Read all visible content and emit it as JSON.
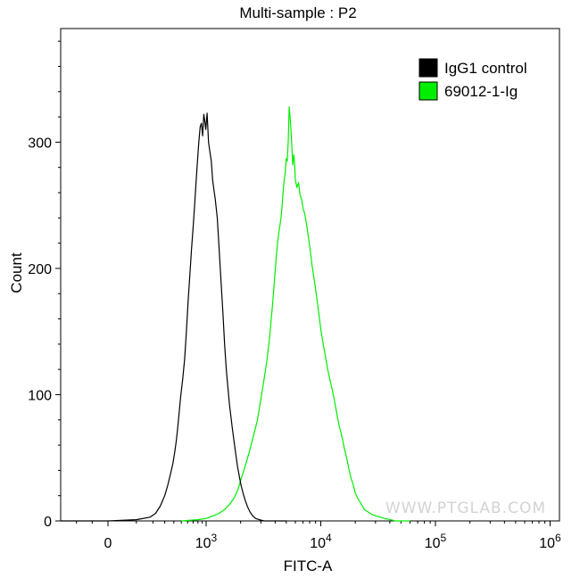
{
  "chart_data": {
    "type": "histogram",
    "title": "Multi-sample : P2",
    "xlabel": "FITC-A",
    "ylabel": "Count",
    "x_scale": "biexponential",
    "xlim": [
      -300,
      1000000
    ],
    "ylim": [
      0,
      390
    ],
    "x_ticks": [
      {
        "value": 0,
        "label": "0"
      },
      {
        "value": 1000,
        "label": "10",
        "sup": "3"
      },
      {
        "value": 10000,
        "label": "10",
        "sup": "4"
      },
      {
        "value": 100000,
        "label": "10",
        "sup": "5"
      },
      {
        "value": 1000000,
        "label": "10",
        "sup": "6"
      }
    ],
    "y_ticks": [
      0,
      100,
      200,
      300
    ],
    "legend_position": "top-right",
    "series": [
      {
        "name": "IgG1 control",
        "color": "#000000",
        "points": [
          [
            -300,
            0
          ],
          [
            -150,
            0
          ],
          [
            0,
            0
          ],
          [
            100,
            1
          ],
          [
            180,
            3
          ],
          [
            220,
            6
          ],
          [
            260,
            12
          ],
          [
            300,
            20
          ],
          [
            330,
            28
          ],
          [
            360,
            37
          ],
          [
            390,
            46
          ],
          [
            410,
            54
          ],
          [
            430,
            63
          ],
          [
            450,
            74
          ],
          [
            470,
            86
          ],
          [
            490,
            98
          ],
          [
            520,
            112
          ],
          [
            550,
            128
          ],
          [
            580,
            150
          ],
          [
            610,
            175
          ],
          [
            640,
            195
          ],
          [
            670,
            215
          ],
          [
            700,
            232
          ],
          [
            730,
            250
          ],
          [
            760,
            268
          ],
          [
            790,
            285
          ],
          [
            820,
            300
          ],
          [
            850,
            312
          ],
          [
            880,
            315
          ],
          [
            910,
            305
          ],
          [
            940,
            322
          ],
          [
            960,
            318
          ],
          [
            990,
            310
          ],
          [
            1020,
            323
          ],
          [
            1050,
            300
          ],
          [
            1080,
            292
          ],
          [
            1110,
            285
          ],
          [
            1140,
            270
          ],
          [
            1170,
            262
          ],
          [
            1200,
            255
          ],
          [
            1250,
            240
          ],
          [
            1300,
            215
          ],
          [
            1350,
            190
          ],
          [
            1400,
            165
          ],
          [
            1450,
            140
          ],
          [
            1500,
            120
          ],
          [
            1550,
            105
          ],
          [
            1600,
            92
          ],
          [
            1650,
            82
          ],
          [
            1700,
            72
          ],
          [
            1760,
            62
          ],
          [
            1820,
            52
          ],
          [
            1880,
            43
          ],
          [
            1950,
            35
          ],
          [
            2020,
            28
          ],
          [
            2100,
            22
          ],
          [
            2200,
            16
          ],
          [
            2300,
            11
          ],
          [
            2420,
            7
          ],
          [
            2550,
            4
          ],
          [
            2700,
            2
          ],
          [
            2900,
            1
          ],
          [
            3200,
            0
          ],
          [
            5000,
            0
          ]
        ]
      },
      {
        "name": "69012-1-Ig",
        "color": "#00ee00",
        "points": [
          [
            500,
            0
          ],
          [
            800,
            1
          ],
          [
            1000,
            2
          ],
          [
            1150,
            4
          ],
          [
            1300,
            6
          ],
          [
            1450,
            9
          ],
          [
            1600,
            13
          ],
          [
            1750,
            18
          ],
          [
            1900,
            25
          ],
          [
            2000,
            32
          ],
          [
            2100,
            38
          ],
          [
            2200,
            44
          ],
          [
            2300,
            50
          ],
          [
            2400,
            56
          ],
          [
            2500,
            62
          ],
          [
            2600,
            68
          ],
          [
            2700,
            74
          ],
          [
            2800,
            80
          ],
          [
            2900,
            88
          ],
          [
            3000,
            96
          ],
          [
            3100,
            104
          ],
          [
            3200,
            112
          ],
          [
            3300,
            120
          ],
          [
            3400,
            128
          ],
          [
            3500,
            138
          ],
          [
            3600,
            148
          ],
          [
            3700,
            160
          ],
          [
            3800,
            172
          ],
          [
            3900,
            185
          ],
          [
            4000,
            198
          ],
          [
            4100,
            210
          ],
          [
            4200,
            220
          ],
          [
            4300,
            228
          ],
          [
            4400,
            234
          ],
          [
            4500,
            240
          ],
          [
            4600,
            250
          ],
          [
            4700,
            262
          ],
          [
            4800,
            270
          ],
          [
            4900,
            276
          ],
          [
            5000,
            287
          ],
          [
            5100,
            285
          ],
          [
            5200,
            300
          ],
          [
            5300,
            328
          ],
          [
            5400,
            320
          ],
          [
            5500,
            310
          ],
          [
            5600,
            296
          ],
          [
            5700,
            282
          ],
          [
            5800,
            290
          ],
          [
            5900,
            284
          ],
          [
            6000,
            270
          ],
          [
            6200,
            264
          ],
          [
            6400,
            268
          ],
          [
            6600,
            258
          ],
          [
            6800,
            255
          ],
          [
            7000,
            248
          ],
          [
            7300,
            242
          ],
          [
            7600,
            232
          ],
          [
            8000,
            218
          ],
          [
            8400,
            202
          ],
          [
            8800,
            190
          ],
          [
            9200,
            178
          ],
          [
            9600,
            165
          ],
          [
            10000,
            152
          ],
          [
            10500,
            140
          ],
          [
            11000,
            130
          ],
          [
            11500,
            120
          ],
          [
            12000,
            112
          ],
          [
            12500,
            105
          ],
          [
            13000,
            98
          ],
          [
            13500,
            90
          ],
          [
            14000,
            82
          ],
          [
            14500,
            75
          ],
          [
            15000,
            70
          ],
          [
            15500,
            64
          ],
          [
            16000,
            58
          ],
          [
            16500,
            53
          ],
          [
            17000,
            48
          ],
          [
            17500,
            42
          ],
          [
            18000,
            37
          ],
          [
            18500,
            33
          ],
          [
            19000,
            30
          ],
          [
            19500,
            26
          ],
          [
            20000,
            22
          ],
          [
            21000,
            18
          ],
          [
            22000,
            15
          ],
          [
            23000,
            12
          ],
          [
            24000,
            9
          ],
          [
            26000,
            7
          ],
          [
            28000,
            5
          ],
          [
            30000,
            4
          ],
          [
            33000,
            3
          ],
          [
            36000,
            2
          ],
          [
            40000,
            1
          ],
          [
            45000,
            0
          ],
          [
            60000,
            0
          ]
        ]
      }
    ]
  },
  "watermark": "WWW.PTGLAB.COM"
}
